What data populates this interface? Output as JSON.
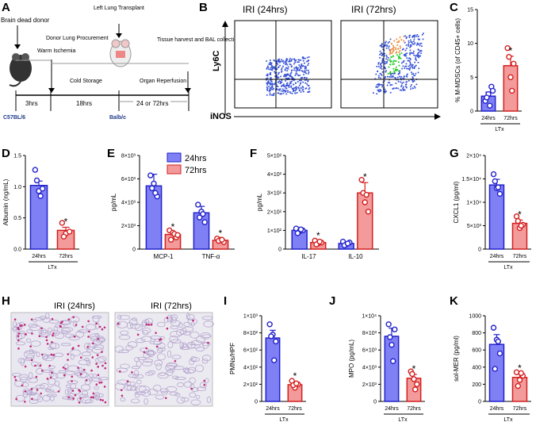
{
  "colors": {
    "blue_fill": "#8080f5",
    "blue_stroke": "#2222cc",
    "red_fill": "#f39a9a",
    "red_stroke": "#d42020",
    "line": "#000000"
  },
  "panelA": {
    "label": "A",
    "texts": {
      "donor": "Brain dead donor",
      "ischemia": "Warm Ischemia",
      "procure": "Donor Lung Procurement",
      "transplant": "Left Lung Transplant",
      "harvest": "Tissue harvest and BAL collection",
      "cold": "Cold Storage",
      "reperf": "Organ Reperfusion",
      "t3": "3hrs",
      "t18": "18hrs",
      "t24": "24 or 72hrs",
      "strain1": "C57BL/6",
      "strain2": "Balb/c"
    }
  },
  "panelB": {
    "label": "B",
    "title1": "IRI (24hrs)",
    "title2": "IRI (72hrs)",
    "ylabel": "Ly6C",
    "xlabel": "iNOS"
  },
  "panelH": {
    "label": "H",
    "title1": "IRI (24hrs)",
    "title2": "IRI (72hrs)"
  },
  "chart_data": [
    {
      "id": "C",
      "type": "bar",
      "ylabel": "% M-MDSCs (of CD45+ cells)",
      "ylim": [
        0,
        15
      ],
      "ticks": [
        "0",
        "5",
        "10",
        "15"
      ],
      "categories": [
        "24hrs",
        "72hrs"
      ],
      "values": [
        2.2,
        6.7
      ],
      "errors": [
        0.6,
        1.4
      ],
      "points": [
        [
          1.5,
          2.5,
          3.6,
          2.0,
          0.8,
          3.0
        ],
        [
          9.3,
          5.0,
          7.0,
          8.0,
          3.0
        ]
      ],
      "sig": [
        false,
        true
      ],
      "group": "LTx"
    },
    {
      "id": "D",
      "type": "bar",
      "ylabel": "Albumin (ng/mL)",
      "ylim": [
        0,
        1.5
      ],
      "ticks": [
        "0.0",
        "0.5",
        "1.0",
        "1.5"
      ],
      "categories": [
        "24hrs",
        "72hrs"
      ],
      "values": [
        1.02,
        0.3
      ],
      "errors": [
        0.07,
        0.05
      ],
      "points": [
        [
          1.27,
          0.93,
          0.97,
          1.1,
          0.85
        ],
        [
          0.42,
          0.25,
          0.28,
          0.2
        ]
      ],
      "sig": [
        false,
        true
      ],
      "group": "LTx"
    },
    {
      "id": "E",
      "type": "bar",
      "ylabel": "pg/mL",
      "ylim": [
        0,
        8000
      ],
      "ticks": [
        "0",
        "2×10³",
        "4×10³",
        "6×10³",
        "8×10³"
      ],
      "categories": [
        "MCP-1",
        "TNF-α"
      ],
      "series": [
        {
          "name": "24hrs",
          "values": [
            5400,
            3100
          ],
          "errors": [
            1000,
            550
          ],
          "points": [
            [
              6300,
              5600,
              4500,
              5200,
              4800
            ],
            [
              3800,
              3200,
              2300,
              2700,
              3000
            ]
          ]
        },
        {
          "name": "72hrs",
          "values": [
            1250,
            750
          ],
          "errors": [
            180,
            130
          ],
          "points": [
            [
              1600,
              1400,
              1000,
              800,
              1300,
              1200
            ],
            [
              900,
              800,
              600,
              700,
              800
            ]
          ]
        }
      ],
      "sig_series": "72hrs"
    },
    {
      "id": "F",
      "type": "bar",
      "ylabel": "pg/mL",
      "ylim": [
        0,
        500
      ],
      "ticks": [
        "0",
        "1×10²",
        "2×10²",
        "3×10²",
        "4×10²",
        "5×10²"
      ],
      "categories": [
        "IL-17",
        "IL-10"
      ],
      "series": [
        {
          "name": "24hrs",
          "values": [
            100,
            30
          ],
          "errors": [
            8,
            6
          ],
          "points": [
            [
              110,
              95,
              100,
              85,
              105
            ],
            [
              40,
              25,
              35,
              20,
              30
            ]
          ]
        },
        {
          "name": "72hrs",
          "values": [
            35,
            300
          ],
          "errors": [
            8,
            55
          ],
          "points": [
            [
              45,
              30,
              35,
              25,
              40
            ],
            [
              370,
              250,
              200,
              300,
              290
            ]
          ]
        }
      ],
      "sig_series": "72hrs"
    },
    {
      "id": "G",
      "type": "bar",
      "ylabel": "CXCL1 (pg/ml)",
      "ylim": [
        0,
        20000
      ],
      "ticks": [
        "0",
        "5×10³",
        "1×10⁴",
        "1.5×10⁴",
        "2×10⁴"
      ],
      "categories": [
        "24hrs",
        "72hrs"
      ],
      "values": [
        13700,
        5500
      ],
      "errors": [
        1200,
        700
      ],
      "points": [
        [
          16000,
          13000,
          11800,
          14500,
          13200
        ],
        [
          7000,
          4500,
          5200,
          6000,
          5000
        ]
      ],
      "sig": [
        false,
        true
      ],
      "group": "LTx"
    },
    {
      "id": "I",
      "type": "bar",
      "ylabel": "PMNs/HPF",
      "ylim": [
        0,
        1000
      ],
      "ticks": [
        "0",
        "2×10²",
        "4×10²",
        "6×10²",
        "8×10²",
        "1×10³"
      ],
      "categories": [
        "24hrs",
        "72hrs"
      ],
      "values": [
        740,
        195
      ],
      "errors": [
        90,
        35
      ],
      "points": [
        [
          900,
          780,
          700,
          760,
          480
        ],
        [
          240,
          160,
          200,
          190,
          210
        ]
      ],
      "sig": [
        false,
        true
      ],
      "group": "LTx"
    },
    {
      "id": "J",
      "type": "bar",
      "ylabel": "MPO (pg/mL)",
      "ylim": [
        0,
        10000
      ],
      "ticks": [
        "0",
        "2×10³",
        "4×10³",
        "6×10³",
        "8×10³",
        "1×10⁴"
      ],
      "categories": [
        "24hrs",
        "72hrs"
      ],
      "values": [
        7600,
        2700
      ],
      "errors": [
        950,
        450
      ],
      "points": [
        [
          9000,
          6600,
          8400,
          7500,
          4700
        ],
        [
          3500,
          2600,
          2000,
          3200,
          1400
        ]
      ],
      "sig": [
        false,
        true
      ],
      "group": "LTx"
    },
    {
      "id": "K",
      "type": "bar",
      "ylabel": "sol-MER (pg/ml)",
      "ylim": [
        0,
        1000
      ],
      "ticks": [
        "0",
        "200",
        "400",
        "600",
        "800",
        "1000"
      ],
      "categories": [
        "24hrs",
        "72hrs"
      ],
      "values": [
        665,
        280
      ],
      "errors": [
        115,
        45
      ],
      "points": [
        [
          860,
          720,
          560,
          380,
          700
        ],
        [
          340,
          250,
          300,
          180,
          330
        ]
      ],
      "sig": [
        false,
        true
      ],
      "group": "LTx"
    }
  ],
  "legend": {
    "s1": "24hrs",
    "s2": "72hrs"
  },
  "star": "*"
}
